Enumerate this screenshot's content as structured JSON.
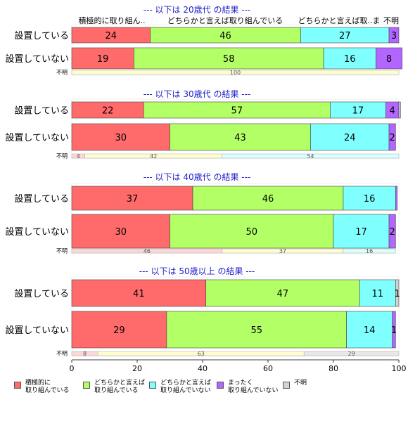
{
  "chart_data": {
    "type": "bar",
    "orientation": "horizontal",
    "stacked": true,
    "xlim": [
      0,
      100
    ],
    "x_ticks": [
      0,
      20,
      40,
      60,
      80,
      100
    ],
    "column_headers": [
      "積極的に取り組ん..",
      "どちらかと言えば取り組んでいる",
      "どちらかと言えば取..ま",
      "不明"
    ],
    "categories_legend": [
      {
        "label": "積極的に\n取り組んでいる",
        "color": "#ff6b6b"
      },
      {
        "label": "どちらかと言えば\n取り組んでいる",
        "color": "#b3ff66"
      },
      {
        "label": "どちらかと言えば\n取り組んでいない",
        "color": "#80ffff"
      },
      {
        "label": "まったく\n取り組んでいない",
        "color": "#b366ff"
      },
      {
        "label": "不明",
        "color": "#d3d3d3"
      }
    ],
    "panels": [
      {
        "title": "--- 以下は 20歳代 の結果 ---",
        "rows": [
          {
            "label": "設置している",
            "values": [
              24,
              46,
              27,
              3,
              0
            ],
            "labels": [
              "24",
              "46",
              "27",
              "3",
              ""
            ]
          },
          {
            "label": "設置していない",
            "values": [
              19,
              58,
              16,
              8,
              0
            ],
            "labels": [
              "19",
              "58",
              "16",
              "8",
              ""
            ]
          }
        ],
        "unknown": {
          "label": "不明",
          "values": [
            0,
            100,
            0,
            0,
            0
          ],
          "labels": [
            "",
            "100",
            "",
            "",
            ""
          ]
        }
      },
      {
        "title": "--- 以下は 30歳代 の結果 ---",
        "rows": [
          {
            "label": "設置している",
            "values": [
              22,
              57,
              17,
              4,
              0.5
            ],
            "labels": [
              "22",
              "57",
              "17",
              "4",
              ""
            ]
          },
          {
            "label": "設置していない",
            "values": [
              30,
              43,
              24,
              2,
              0
            ],
            "labels": [
              "30",
              "43",
              "24",
              "2",
              ""
            ]
          }
        ],
        "unknown": {
          "label": "不明",
          "values": [
            4,
            42,
            54,
            0,
            0
          ],
          "labels": [
            "4",
            "42",
            "54",
            "",
            ""
          ]
        }
      },
      {
        "title": "--- 以下は 40歳代 の結果 ---",
        "rows": [
          {
            "label": "設置している",
            "values": [
              37,
              46,
              16,
              0.5,
              0
            ],
            "labels": [
              "37",
              "46",
              "16",
              "",
              ""
            ]
          },
          {
            "label": "設置していない",
            "values": [
              30,
              50,
              17,
              2,
              0
            ],
            "labels": [
              "30",
              "50",
              "17",
              "2",
              ""
            ]
          }
        ],
        "unknown": {
          "label": "不明",
          "values": [
            46,
            37,
            16,
            0,
            0
          ],
          "labels": [
            "46",
            "37",
            "16",
            "",
            ""
          ]
        }
      },
      {
        "title": "--- 以下は 50歳以上 の結果 ---",
        "rows": [
          {
            "label": "設置している",
            "values": [
              41,
              47,
              11,
              0,
              1
            ],
            "labels": [
              "41",
              "47",
              "11",
              "",
              "1"
            ]
          },
          {
            "label": "設置していない",
            "values": [
              29,
              55,
              14,
              1,
              0
            ],
            "labels": [
              "29",
              "55",
              "14",
              "1",
              ""
            ]
          }
        ],
        "unknown": {
          "label": "不明",
          "values": [
            8,
            63,
            0,
            0,
            29
          ],
          "labels": [
            "8",
            "63",
            "",
            "",
            "29"
          ]
        }
      }
    ]
  }
}
